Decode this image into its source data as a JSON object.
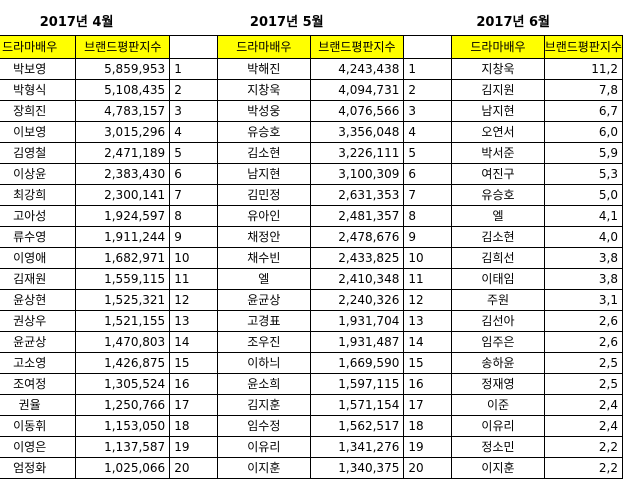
{
  "months": [
    {
      "title": "2017년 4월",
      "col_name": "드라마배우",
      "col_index": "브랜드평판지수",
      "rows": [
        {
          "name": "박보영",
          "value": "5,859,953"
        },
        {
          "name": "박형식",
          "value": "5,108,435"
        },
        {
          "name": "장희진",
          "value": "4,783,157"
        },
        {
          "name": "이보영",
          "value": "3,015,296"
        },
        {
          "name": "김영철",
          "value": "2,471,189"
        },
        {
          "name": "이상윤",
          "value": "2,383,430"
        },
        {
          "name": "최강희",
          "value": "2,300,141"
        },
        {
          "name": "고아성",
          "value": "1,924,597"
        },
        {
          "name": "류수영",
          "value": "1,911,244"
        },
        {
          "name": "이영애",
          "value": "1,682,971"
        },
        {
          "name": "김재원",
          "value": "1,559,115"
        },
        {
          "name": "윤상현",
          "value": "1,525,321"
        },
        {
          "name": "권상우",
          "value": "1,521,155"
        },
        {
          "name": "윤균상",
          "value": "1,470,803"
        },
        {
          "name": "고소영",
          "value": "1,426,875"
        },
        {
          "name": "조여정",
          "value": "1,305,524"
        },
        {
          "name": "권율",
          "value": "1,250,766"
        },
        {
          "name": "이동휘",
          "value": "1,153,050"
        },
        {
          "name": "이영은",
          "value": "1,137,587"
        },
        {
          "name": "엄정화",
          "value": "1,025,066"
        }
      ]
    },
    {
      "title": "2017년 5월",
      "col_name": "드라마배우",
      "col_index": "브랜드평판지수",
      "rows": [
        {
          "rank": "1",
          "name": "박해진",
          "value": "4,243,438"
        },
        {
          "rank": "2",
          "name": "지창욱",
          "value": "4,094,731"
        },
        {
          "rank": "3",
          "name": "박성웅",
          "value": "4,076,566"
        },
        {
          "rank": "4",
          "name": "유승호",
          "value": "3,356,048"
        },
        {
          "rank": "5",
          "name": "김소현",
          "value": "3,226,111"
        },
        {
          "rank": "6",
          "name": "남지현",
          "value": "3,100,309"
        },
        {
          "rank": "7",
          "name": "김민정",
          "value": "2,631,353"
        },
        {
          "rank": "8",
          "name": "유아인",
          "value": "2,481,357"
        },
        {
          "rank": "9",
          "name": "채정안",
          "value": "2,478,676"
        },
        {
          "rank": "10",
          "name": "채수빈",
          "value": "2,433,825"
        },
        {
          "rank": "11",
          "name": "엘",
          "value": "2,410,348"
        },
        {
          "rank": "12",
          "name": "윤균상",
          "value": "2,240,326"
        },
        {
          "rank": "13",
          "name": "고경표",
          "value": "1,931,704"
        },
        {
          "rank": "14",
          "name": "조우진",
          "value": "1,931,487"
        },
        {
          "rank": "15",
          "name": "이하늬",
          "value": "1,669,590"
        },
        {
          "rank": "16",
          "name": "윤소희",
          "value": "1,597,115"
        },
        {
          "rank": "17",
          "name": "김지훈",
          "value": "1,571,154"
        },
        {
          "rank": "18",
          "name": "임수정",
          "value": "1,562,517"
        },
        {
          "rank": "19",
          "name": "이유리",
          "value": "1,341,276"
        },
        {
          "rank": "20",
          "name": "이지훈",
          "value": "1,340,375"
        }
      ]
    },
    {
      "title": "2017년 6월",
      "col_name": "드라마배우",
      "col_index": "브랜드평판지수",
      "rows": [
        {
          "rank": "1",
          "name": "지창욱",
          "value": "11,2"
        },
        {
          "rank": "2",
          "name": "김지원",
          "value": "7,8"
        },
        {
          "rank": "3",
          "name": "남지현",
          "value": "6,7"
        },
        {
          "rank": "4",
          "name": "오연서",
          "value": "6,0"
        },
        {
          "rank": "5",
          "name": "박서준",
          "value": "5,9"
        },
        {
          "rank": "6",
          "name": "여진구",
          "value": "5,3"
        },
        {
          "rank": "7",
          "name": "유승호",
          "value": "5,0"
        },
        {
          "rank": "8",
          "name": "엘",
          "value": "4,1"
        },
        {
          "rank": "9",
          "name": "김소현",
          "value": "4,0"
        },
        {
          "rank": "10",
          "name": "김희선",
          "value": "3,8"
        },
        {
          "rank": "11",
          "name": "이태임",
          "value": "3,8"
        },
        {
          "rank": "12",
          "name": "주원",
          "value": "3,1"
        },
        {
          "rank": "13",
          "name": "김선아",
          "value": "2,6"
        },
        {
          "rank": "14",
          "name": "임주은",
          "value": "2,6"
        },
        {
          "rank": "15",
          "name": "송하윤",
          "value": "2,5"
        },
        {
          "rank": "16",
          "name": "정재영",
          "value": "2,5"
        },
        {
          "rank": "17",
          "name": "이준",
          "value": "2,4"
        },
        {
          "rank": "18",
          "name": "이유리",
          "value": "2,4"
        },
        {
          "rank": "19",
          "name": "정소민",
          "value": "2,2"
        },
        {
          "rank": "20",
          "name": "이지훈",
          "value": "2,2"
        }
      ]
    }
  ]
}
